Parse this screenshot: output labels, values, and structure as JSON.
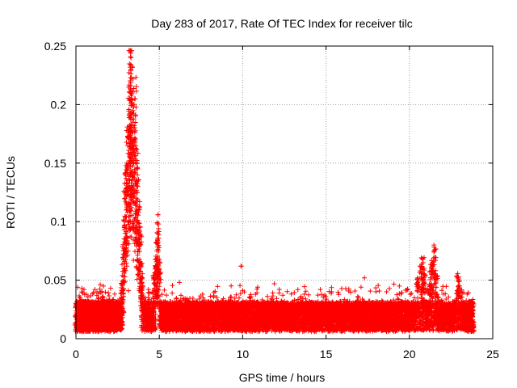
{
  "chart_data": {
    "type": "scatter",
    "title": "Day 283 of 2017, Rate Of TEC Index for receiver tilc",
    "xlabel": "GPS time / hours",
    "ylabel": "ROTI / TECUs",
    "xlim": [
      0,
      25
    ],
    "ylim": [
      0,
      0.25
    ],
    "x_ticks": [
      0,
      5,
      10,
      15,
      20,
      25
    ],
    "y_ticks": [
      0,
      0.05,
      0.1,
      0.15,
      0.2,
      0.25
    ],
    "x_tick_labels": [
      "0",
      "5",
      "10",
      "15",
      "20",
      "25"
    ],
    "y_tick_labels": [
      "0",
      "0.05",
      "0.1",
      "0.15",
      "0.2",
      "0.25"
    ],
    "grid": true,
    "marker": "+",
    "color": "#ff0000",
    "series": [
      {
        "name": "ROTI",
        "points": [
          [
            0.05,
            0.014
          ],
          [
            0.12,
            0.021
          ],
          [
            0.2,
            0.008
          ],
          [
            0.25,
            0.032
          ],
          [
            0.3,
            0.019
          ],
          [
            0.35,
            0.04
          ],
          [
            0.4,
            0.012
          ],
          [
            0.45,
            0.025
          ],
          [
            0.5,
            0.016
          ],
          [
            0.55,
            0.03
          ],
          [
            0.6,
            0.01
          ],
          [
            0.7,
            0.022
          ],
          [
            0.75,
            0.018
          ],
          [
            0.8,
            0.028
          ],
          [
            0.9,
            0.013
          ],
          [
            0.95,
            0.024
          ],
          [
            1.0,
            0.017
          ],
          [
            1.1,
            0.031
          ],
          [
            1.2,
            0.012
          ],
          [
            1.3,
            0.02
          ],
          [
            1.4,
            0.015
          ],
          [
            1.5,
            0.027
          ],
          [
            1.6,
            0.036
          ],
          [
            1.65,
            0.045
          ],
          [
            1.7,
            0.019
          ],
          [
            1.8,
            0.014
          ],
          [
            1.9,
            0.023
          ],
          [
            2.0,
            0.018
          ],
          [
            2.1,
            0.03
          ],
          [
            2.2,
            0.011
          ],
          [
            2.3,
            0.021
          ],
          [
            2.4,
            0.016
          ],
          [
            2.5,
            0.026
          ],
          [
            2.6,
            0.02
          ],
          [
            2.7,
            0.034
          ],
          [
            2.8,
            0.049
          ],
          [
            2.85,
            0.072
          ],
          [
            2.9,
            0.095
          ],
          [
            2.95,
            0.12
          ],
          [
            3.0,
            0.137
          ],
          [
            3.05,
            0.15
          ],
          [
            3.1,
            0.165
          ],
          [
            3.15,
            0.178
          ],
          [
            3.2,
            0.192
          ],
          [
            3.22,
            0.205
          ],
          [
            3.25,
            0.232
          ],
          [
            3.28,
            0.244
          ],
          [
            3.3,
            0.24
          ],
          [
            3.32,
            0.223
          ],
          [
            3.35,
            0.204
          ],
          [
            3.4,
            0.185
          ],
          [
            3.45,
            0.17
          ],
          [
            3.5,
            0.182
          ],
          [
            3.55,
            0.205
          ],
          [
            3.6,
            0.165
          ],
          [
            3.65,
            0.15
          ],
          [
            3.7,
            0.13
          ],
          [
            3.75,
            0.11
          ],
          [
            3.8,
            0.095
          ],
          [
            3.85,
            0.08
          ],
          [
            3.9,
            0.062
          ],
          [
            3.95,
            0.048
          ],
          [
            4.0,
            0.035
          ],
          [
            4.1,
            0.028
          ],
          [
            4.2,
            0.022
          ],
          [
            4.3,
            0.03
          ],
          [
            4.4,
            0.02
          ],
          [
            4.5,
            0.026
          ],
          [
            4.6,
            0.04
          ],
          [
            4.7,
            0.052
          ],
          [
            4.8,
            0.06
          ],
          [
            4.85,
            0.075
          ],
          [
            4.9,
            0.09
          ],
          [
            4.95,
            0.098
          ],
          [
            5.0,
            0.055
          ],
          [
            5.1,
            0.03
          ],
          [
            5.2,
            0.022
          ],
          [
            5.3,
            0.016
          ],
          [
            5.5,
            0.024
          ],
          [
            5.7,
            0.018
          ],
          [
            5.9,
            0.027
          ],
          [
            6.1,
            0.015
          ],
          [
            6.3,
            0.022
          ],
          [
            6.5,
            0.019
          ],
          [
            6.7,
            0.025
          ],
          [
            6.9,
            0.013
          ],
          [
            7.1,
            0.02
          ],
          [
            7.3,
            0.017
          ],
          [
            7.5,
            0.023
          ],
          [
            7.7,
            0.014
          ],
          [
            7.9,
            0.021
          ],
          [
            8.1,
            0.028
          ],
          [
            8.3,
            0.018
          ],
          [
            8.5,
            0.032
          ],
          [
            8.7,
            0.02
          ],
          [
            8.9,
            0.026
          ],
          [
            9.1,
            0.019
          ],
          [
            9.3,
            0.033
          ],
          [
            9.5,
            0.022
          ],
          [
            9.7,
            0.029
          ],
          [
            9.9,
            0.062
          ],
          [
            10.1,
            0.04
          ],
          [
            10.3,
            0.024
          ],
          [
            10.5,
            0.036
          ],
          [
            10.7,
            0.018
          ],
          [
            10.9,
            0.044
          ],
          [
            11.1,
            0.026
          ],
          [
            11.3,
            0.03
          ],
          [
            11.5,
            0.021
          ],
          [
            11.7,
            0.034
          ],
          [
            11.9,
            0.047
          ],
          [
            12.1,
            0.022
          ],
          [
            12.3,
            0.028
          ],
          [
            12.5,
            0.019
          ],
          [
            12.7,
            0.031
          ],
          [
            12.9,
            0.024
          ],
          [
            13.1,
            0.033
          ],
          [
            13.3,
            0.02
          ],
          [
            13.5,
            0.036
          ],
          [
            13.7,
            0.038
          ],
          [
            13.9,
            0.025
          ],
          [
            14.1,
            0.017
          ],
          [
            14.3,
            0.022
          ],
          [
            14.5,
            0.015
          ],
          [
            14.7,
            0.024
          ],
          [
            14.9,
            0.019
          ],
          [
            15.1,
            0.03
          ],
          [
            15.3,
            0.022
          ],
          [
            15.5,
            0.028
          ],
          [
            15.7,
            0.017
          ],
          [
            15.9,
            0.025
          ],
          [
            16.1,
            0.02
          ],
          [
            16.3,
            0.032
          ],
          [
            16.5,
            0.018
          ],
          [
            16.7,
            0.026
          ],
          [
            16.9,
            0.036
          ],
          [
            17.1,
            0.044
          ],
          [
            17.3,
            0.052
          ],
          [
            17.5,
            0.028
          ],
          [
            17.7,
            0.021
          ],
          [
            17.9,
            0.03
          ],
          [
            18.1,
            0.019
          ],
          [
            18.3,
            0.027
          ],
          [
            18.5,
            0.022
          ],
          [
            18.7,
            0.031
          ],
          [
            18.9,
            0.018
          ],
          [
            19.1,
            0.025
          ],
          [
            19.3,
            0.034
          ],
          [
            19.5,
            0.02
          ],
          [
            19.7,
            0.029
          ],
          [
            19.9,
            0.042
          ],
          [
            20.1,
            0.026
          ],
          [
            20.3,
            0.035
          ],
          [
            20.5,
            0.048
          ],
          [
            20.7,
            0.062
          ],
          [
            20.8,
            0.068
          ],
          [
            20.9,
            0.055
          ],
          [
            21.0,
            0.04
          ],
          [
            21.1,
            0.03
          ],
          [
            21.2,
            0.045
          ],
          [
            21.3,
            0.058
          ],
          [
            21.4,
            0.062
          ],
          [
            21.5,
            0.075
          ],
          [
            21.6,
            0.05
          ],
          [
            21.7,
            0.035
          ],
          [
            21.8,
            0.025
          ],
          [
            21.9,
            0.032
          ],
          [
            22.1,
            0.02
          ],
          [
            22.3,
            0.027
          ],
          [
            22.5,
            0.018
          ],
          [
            22.7,
            0.03
          ],
          [
            22.9,
            0.052
          ],
          [
            23.0,
            0.045
          ],
          [
            23.1,
            0.022
          ],
          [
            23.3,
            0.028
          ],
          [
            23.5,
            0.019
          ],
          [
            23.7,
            0.024
          ],
          [
            23.8,
            0.016
          ]
        ]
      }
    ]
  }
}
